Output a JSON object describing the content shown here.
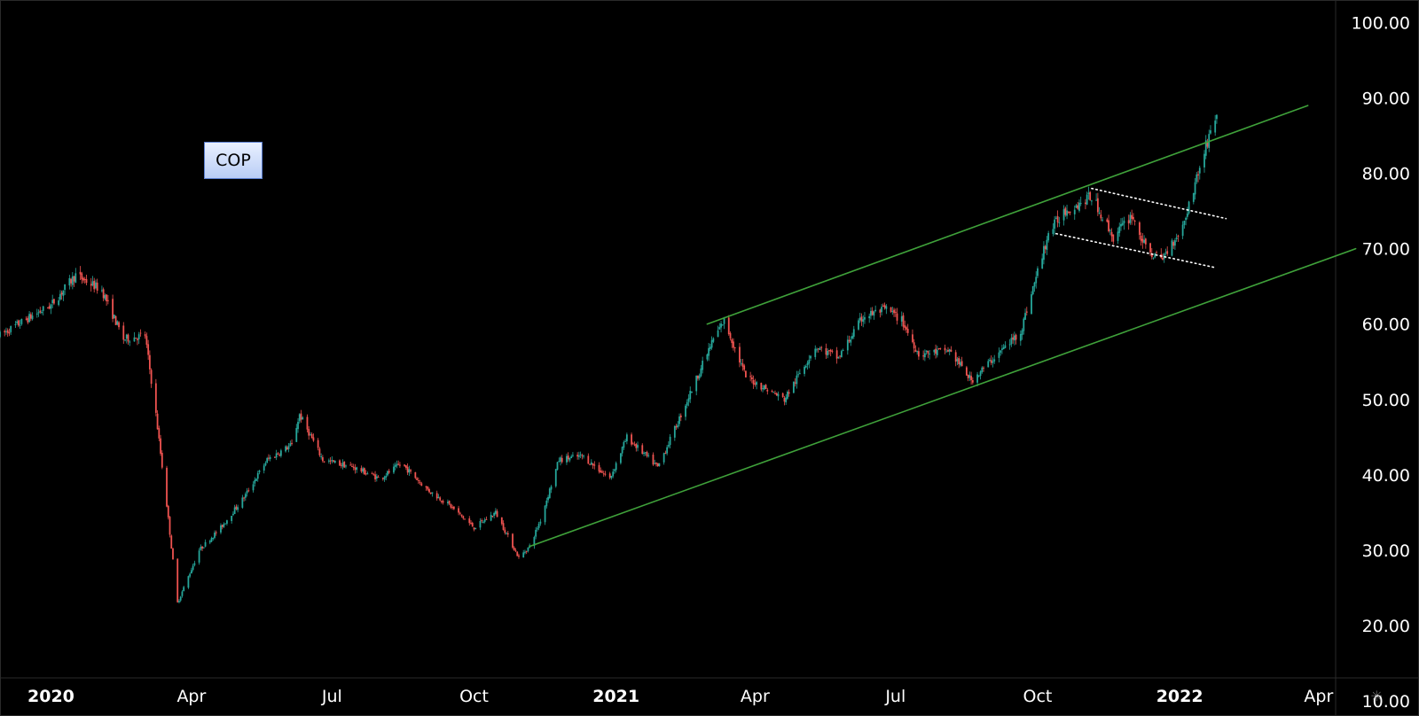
{
  "ticker": "COP",
  "colors": {
    "background": "#000000",
    "up_candle": "#26a69a",
    "down_candle": "#ef5350",
    "trendline": "#3fa13a",
    "flag_line": "#ffffff",
    "axis_text": "#ffffff"
  },
  "settings_icon": "gear-icon",
  "chart_data": {
    "type": "candlestick",
    "title": "",
    "y_axis": {
      "position": "right",
      "ticks": [
        "100.00",
        "90.00",
        "80.00",
        "70.00",
        "60.00",
        "50.00",
        "40.00",
        "30.00",
        "20.00",
        "10.00"
      ],
      "ylim": [
        8,
        103
      ]
    },
    "x_axis": {
      "ticks": [
        {
          "label": "2020",
          "date": "2020-01-01",
          "bold": true
        },
        {
          "label": "Apr",
          "date": "2020-04-01",
          "bold": false
        },
        {
          "label": "Jul",
          "date": "2020-07-01",
          "bold": false
        },
        {
          "label": "Oct",
          "date": "2020-10-01",
          "bold": false
        },
        {
          "label": "2021",
          "date": "2021-01-01",
          "bold": true
        },
        {
          "label": "Apr",
          "date": "2021-04-01",
          "bold": false
        },
        {
          "label": "Jul",
          "date": "2021-07-01",
          "bold": false
        },
        {
          "label": "Oct",
          "date": "2021-10-01",
          "bold": false
        },
        {
          "label": "2022",
          "date": "2022-01-01",
          "bold": true
        },
        {
          "label": "Apr",
          "date": "2022-04-01",
          "bold": false
        }
      ],
      "xlim": [
        "2019-11-29",
        "2022-06-05"
      ]
    },
    "price_path": [
      [
        "2019-11-29",
        58.5
      ],
      [
        "2019-12-15",
        60.5
      ],
      [
        "2020-01-01",
        62.5
      ],
      [
        "2020-01-17",
        66.5
      ],
      [
        "2020-02-03",
        64.5
      ],
      [
        "2020-02-17",
        58.0
      ],
      [
        "2020-03-02",
        58.5
      ],
      [
        "2020-03-09",
        48.0
      ],
      [
        "2020-03-16",
        36.0
      ],
      [
        "2020-03-23",
        23.0
      ],
      [
        "2020-04-06",
        30.0
      ],
      [
        "2020-04-20",
        33.0
      ],
      [
        "2020-05-05",
        37.0
      ],
      [
        "2020-05-20",
        42.0
      ],
      [
        "2020-06-05",
        44.0
      ],
      [
        "2020-06-10",
        48.0
      ],
      [
        "2020-06-25",
        42.0
      ],
      [
        "2020-07-15",
        41.0
      ],
      [
        "2020-08-01",
        39.5
      ],
      [
        "2020-08-15",
        41.5
      ],
      [
        "2020-09-01",
        38.0
      ],
      [
        "2020-09-15",
        36.0
      ],
      [
        "2020-10-01",
        33.0
      ],
      [
        "2020-10-15",
        35.0
      ],
      [
        "2020-10-30",
        29.0
      ],
      [
        "2020-11-06",
        30.5
      ],
      [
        "2020-11-13",
        34.0
      ],
      [
        "2020-11-25",
        42.0
      ],
      [
        "2020-12-10",
        42.5
      ],
      [
        "2020-12-28",
        39.5
      ],
      [
        "2021-01-08",
        45.0
      ],
      [
        "2021-01-28",
        41.0
      ],
      [
        "2021-02-10",
        47.0
      ],
      [
        "2021-03-05",
        58.0
      ],
      [
        "2021-03-12",
        60.5
      ],
      [
        "2021-03-26",
        53.0
      ],
      [
        "2021-04-20",
        50.0
      ],
      [
        "2021-05-10",
        57.0
      ],
      [
        "2021-05-25",
        55.5
      ],
      [
        "2021-06-10",
        61.0
      ],
      [
        "2021-06-25",
        62.0
      ],
      [
        "2021-07-05",
        60.5
      ],
      [
        "2021-07-16",
        56.0
      ],
      [
        "2021-08-05",
        56.5
      ],
      [
        "2021-08-19",
        52.5
      ],
      [
        "2021-09-05",
        56.0
      ],
      [
        "2021-09-20",
        59.0
      ],
      [
        "2021-10-08",
        72.0
      ],
      [
        "2021-10-18",
        75.0
      ],
      [
        "2021-10-28",
        76.0
      ],
      [
        "2021-11-05",
        77.0
      ],
      [
        "2021-11-19",
        71.5
      ],
      [
        "2021-12-01",
        74.5
      ],
      [
        "2021-12-10",
        70.0
      ],
      [
        "2021-12-20",
        68.5
      ],
      [
        "2022-01-03",
        73.0
      ],
      [
        "2022-01-10",
        78.0
      ],
      [
        "2022-01-20",
        85.0
      ],
      [
        "2022-01-25",
        88.0
      ]
    ],
    "trendlines": [
      {
        "name": "channel-upper",
        "from": [
          "2021-03-01",
          60.0
        ],
        "to": [
          "2022-03-25",
          89.0
        ],
        "style": "solid"
      },
      {
        "name": "channel-lower",
        "from": [
          "2020-11-06",
          30.5
        ],
        "to": [
          "2022-04-25",
          70.0
        ],
        "style": "solid"
      },
      {
        "name": "flag-upper",
        "from": [
          "2021-11-05",
          78.0
        ],
        "to": [
          "2022-01-31",
          74.0
        ],
        "style": "dotted"
      },
      {
        "name": "flag-lower",
        "from": [
          "2021-10-13",
          72.0
        ],
        "to": [
          "2022-01-24",
          67.5
        ],
        "style": "dotted"
      }
    ]
  }
}
